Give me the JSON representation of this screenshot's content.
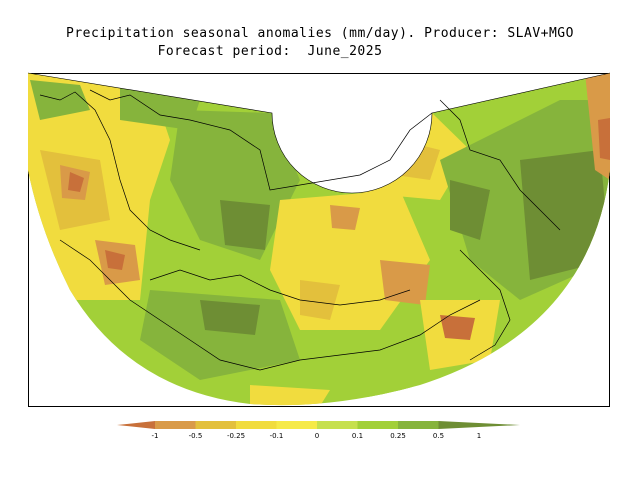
{
  "title": {
    "line1": "Precipitation seasonal anomalies (mm/day). Producer: SLAV+MGO",
    "line2": "Forecast period:  June_2025"
  },
  "colorbar": {
    "labels": [
      "-1",
      "-0.5",
      "-0.25",
      "-0.1",
      "0",
      "0.1",
      "0.25",
      "0.5",
      "1"
    ],
    "colors": [
      "#c8703a",
      "#d99a48",
      "#e3c03c",
      "#f1dc3e",
      "#f6ea48",
      "#c6e04e",
      "#a2d038",
      "#86b43c",
      "#6e8e34"
    ]
  },
  "map": {
    "palette": {
      "strong_dry": "#c8703a",
      "dry": "#d99a48",
      "mild_dry": "#e3c03c",
      "slight_dry": "#f1dc3e",
      "near_zero": "#f6ea48",
      "slight_wet": "#c6e04e",
      "mild_wet": "#a2d038",
      "wet": "#86b43c",
      "strong_wet": "#6e8e34"
    }
  }
}
